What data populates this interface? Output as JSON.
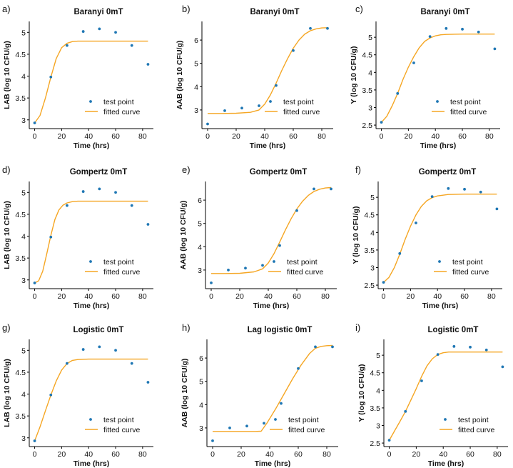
{
  "legend": {
    "point_label": "test point",
    "curve_label": "fitted curve"
  },
  "colors": {
    "point": "#1f77b4",
    "curve": "#f5a623",
    "axis": "#000000"
  },
  "chart_data": [
    {
      "panel": "a)",
      "type": "scatter+line",
      "title": "Baranyi 0mT",
      "xlabel": "Time (hrs)",
      "ylabel": "LAB (log 10 CFU/g)",
      "xlim": [
        -4,
        88
      ],
      "ylim": [
        2.8,
        5.25
      ],
      "xticks": [
        0,
        20,
        40,
        60,
        80
      ],
      "yticks": [
        3,
        3.5,
        4,
        4.5,
        5
      ],
      "xtick_labels": [
        "0",
        "20",
        "40",
        "60",
        "80"
      ],
      "ytick_labels": [
        "3",
        "3.5",
        "4",
        "4.5",
        "5"
      ],
      "points": {
        "x": [
          0,
          12,
          24,
          36,
          48,
          60,
          72,
          84
        ],
        "y": [
          2.93,
          3.98,
          4.7,
          5.02,
          5.08,
          5.0,
          4.7,
          4.27
        ]
      },
      "curve": {
        "x": [
          0,
          4,
          8,
          12,
          16,
          20,
          24,
          28,
          32,
          36,
          48,
          60,
          72,
          84
        ],
        "y": [
          2.93,
          3.1,
          3.5,
          3.98,
          4.4,
          4.65,
          4.75,
          4.79,
          4.8,
          4.8,
          4.8,
          4.8,
          4.8,
          4.8
        ]
      }
    },
    {
      "panel": "b)",
      "type": "scatter+line",
      "title": "Baranyi 0mT",
      "xlabel": "Time (hrs)",
      "ylabel": "AAB (log 10 CFU/g)",
      "xlim": [
        -4,
        88
      ],
      "ylim": [
        2.2,
        6.8
      ],
      "xticks": [
        0,
        20,
        40,
        60,
        80
      ],
      "yticks": [
        3,
        4,
        5,
        6
      ],
      "xtick_labels": [
        "0",
        "20",
        "40",
        "60",
        "80"
      ],
      "ytick_labels": [
        "3",
        "4",
        "5",
        "6"
      ],
      "points": {
        "x": [
          0,
          12,
          24,
          36,
          48,
          60,
          72,
          84
        ],
        "y": [
          2.4,
          2.97,
          3.08,
          3.18,
          4.05,
          5.55,
          6.5,
          6.5
        ]
      },
      "curve": {
        "x": [
          0,
          10,
          20,
          30,
          36,
          40,
          44,
          48,
          52,
          56,
          60,
          64,
          68,
          72,
          76,
          80,
          84
        ],
        "y": [
          2.85,
          2.85,
          2.86,
          2.9,
          3.0,
          3.25,
          3.65,
          4.15,
          4.7,
          5.2,
          5.65,
          6.0,
          6.25,
          6.4,
          6.48,
          6.52,
          6.53
        ]
      }
    },
    {
      "panel": "c)",
      "type": "scatter+line",
      "title": "Baranyi 0mT",
      "xlabel": "Time (hrs)",
      "ylabel": "Y (log 10 CFU/g)",
      "xlim": [
        -4,
        88
      ],
      "ylim": [
        2.4,
        5.45
      ],
      "xticks": [
        0,
        20,
        40,
        60,
        80
      ],
      "yticks": [
        2.5,
        3,
        3.5,
        4,
        4.5,
        5
      ],
      "xtick_labels": [
        "0",
        "20",
        "40",
        "60",
        "80"
      ],
      "ytick_labels": [
        "2.5",
        "3",
        "3.5",
        "4",
        "4.5",
        "5"
      ],
      "points": {
        "x": [
          0,
          12,
          24,
          36,
          48,
          60,
          72,
          84
        ],
        "y": [
          2.58,
          3.4,
          4.27,
          5.02,
          5.25,
          5.23,
          5.15,
          4.67
        ]
      },
      "curve": {
        "x": [
          0,
          4,
          8,
          12,
          16,
          20,
          24,
          28,
          32,
          36,
          40,
          44,
          48,
          60,
          72,
          84
        ],
        "y": [
          2.58,
          2.75,
          3.05,
          3.4,
          3.8,
          4.15,
          4.45,
          4.7,
          4.88,
          4.98,
          5.04,
          5.07,
          5.08,
          5.09,
          5.09,
          5.09
        ]
      }
    },
    {
      "panel": "d)",
      "type": "scatter+line",
      "title": "Gompertz 0mT",
      "xlabel": "Time (hrs)",
      "ylabel": "LAB (log 10 CFU/g)",
      "xlim": [
        -4,
        88
      ],
      "ylim": [
        2.8,
        5.25
      ],
      "xticks": [
        0,
        20,
        40,
        60,
        80
      ],
      "yticks": [
        3,
        3.5,
        4,
        4.5,
        5
      ],
      "xtick_labels": [
        "0",
        "20",
        "40",
        "60",
        "80"
      ],
      "ytick_labels": [
        "3",
        "3.5",
        "4",
        "4.5",
        "5"
      ],
      "points": {
        "x": [
          0,
          12,
          24,
          36,
          48,
          60,
          72,
          84
        ],
        "y": [
          2.93,
          3.98,
          4.7,
          5.02,
          5.08,
          5.0,
          4.7,
          4.27
        ]
      },
      "curve": {
        "x": [
          0,
          3,
          6,
          9,
          12,
          15,
          18,
          21,
          24,
          28,
          32,
          40,
          48,
          60,
          72,
          84
        ],
        "y": [
          2.93,
          2.98,
          3.2,
          3.6,
          4.02,
          4.38,
          4.6,
          4.71,
          4.76,
          4.79,
          4.8,
          4.8,
          4.8,
          4.8,
          4.8,
          4.8
        ]
      }
    },
    {
      "panel": "e)",
      "type": "scatter+line",
      "title": "Gompertz 0mT",
      "xlabel": "Time (hrs)",
      "ylabel": "AAB (log 10 CFU/g)",
      "xlim": [
        -4,
        88
      ],
      "ylim": [
        2.2,
        6.8
      ],
      "xticks": [
        0,
        20,
        40,
        60,
        80
      ],
      "yticks": [
        3,
        4,
        5,
        6
      ],
      "xtick_labels": [
        "0",
        "20",
        "40",
        "60",
        "80"
      ],
      "ytick_labels": [
        "3",
        "4",
        "5",
        "6"
      ],
      "points": {
        "x": [
          0,
          12,
          24,
          36,
          48,
          60,
          72,
          84
        ],
        "y": [
          2.45,
          3.0,
          3.08,
          3.2,
          4.05,
          5.55,
          6.48,
          6.48
        ]
      },
      "curve": {
        "x": [
          0,
          10,
          20,
          30,
          36,
          40,
          44,
          48,
          52,
          56,
          60,
          64,
          68,
          72,
          76,
          80,
          84
        ],
        "y": [
          2.85,
          2.85,
          2.86,
          2.92,
          3.05,
          3.3,
          3.7,
          4.2,
          4.72,
          5.2,
          5.62,
          5.95,
          6.2,
          6.37,
          6.47,
          6.52,
          6.54
        ]
      }
    },
    {
      "panel": "f)",
      "type": "scatter+line",
      "title": "Gompertz 0mT",
      "xlabel": "Time (hrs)",
      "ylabel": "Y (log 10 CFU/g)",
      "xlim": [
        -4,
        88
      ],
      "ylim": [
        2.4,
        5.45
      ],
      "xticks": [
        0,
        20,
        40,
        60,
        80
      ],
      "yticks": [
        2.5,
        3,
        3.5,
        4,
        4.5,
        5
      ],
      "xtick_labels": [
        "0",
        "20",
        "40",
        "60",
        "80"
      ],
      "ytick_labels": [
        "2.5",
        "3",
        "3.5",
        "4",
        "4.5",
        "5"
      ],
      "points": {
        "x": [
          0,
          12,
          24,
          36,
          48,
          60,
          72,
          84
        ],
        "y": [
          2.58,
          3.4,
          4.27,
          5.02,
          5.25,
          5.23,
          5.15,
          4.67
        ]
      },
      "curve": {
        "x": [
          0,
          4,
          8,
          12,
          16,
          20,
          24,
          28,
          32,
          36,
          40,
          48,
          60,
          72,
          84
        ],
        "y": [
          2.58,
          2.72,
          3.0,
          3.38,
          3.8,
          4.18,
          4.5,
          4.74,
          4.9,
          4.99,
          5.04,
          5.08,
          5.09,
          5.09,
          5.09
        ]
      }
    },
    {
      "panel": "g)",
      "type": "scatter+line",
      "title": "Logistic 0mT",
      "xlabel": "Time (hrs)",
      "ylabel": "LAB (log 10 CFU/g)",
      "xlim": [
        -4,
        88
      ],
      "ylim": [
        2.8,
        5.25
      ],
      "xticks": [
        0,
        20,
        40,
        60,
        80
      ],
      "yticks": [
        3,
        3.5,
        4,
        4.5,
        5
      ],
      "xtick_labels": [
        "0",
        "20",
        "40",
        "60",
        "80"
      ],
      "ytick_labels": [
        "3",
        "3.5",
        "4",
        "4.5",
        "5"
      ],
      "points": {
        "x": [
          0,
          12,
          24,
          36,
          48,
          60,
          72,
          84
        ],
        "y": [
          2.93,
          3.98,
          4.7,
          5.02,
          5.08,
          5.0,
          4.7,
          4.27
        ]
      },
      "curve": {
        "x": [
          0,
          4,
          8,
          12,
          16,
          20,
          24,
          28,
          32,
          40,
          48,
          60,
          72,
          84
        ],
        "y": [
          2.93,
          3.25,
          3.62,
          3.98,
          4.3,
          4.55,
          4.7,
          4.77,
          4.79,
          4.8,
          4.8,
          4.8,
          4.8,
          4.8
        ]
      }
    },
    {
      "panel": "h)",
      "type": "scatter+line",
      "title": "Lag logistic 0mT",
      "xlabel": "Time (hrs)",
      "ylabel": "AAB (log 10 CFU/g)",
      "xlim": [
        -4,
        88
      ],
      "ylim": [
        2.2,
        6.8
      ],
      "xticks": [
        0,
        20,
        40,
        60,
        80
      ],
      "yticks": [
        3,
        4,
        5,
        6
      ],
      "xtick_labels": [
        "0",
        "20",
        "40",
        "60",
        "80"
      ],
      "ytick_labels": [
        "3",
        "4",
        "5",
        "6"
      ],
      "points": {
        "x": [
          0,
          12,
          24,
          36,
          48,
          60,
          72,
          84
        ],
        "y": [
          2.45,
          3.0,
          3.08,
          3.2,
          4.05,
          5.55,
          6.48,
          6.48
        ]
      },
      "curve": {
        "x": [
          0,
          10,
          20,
          30,
          34,
          38,
          44,
          50,
          56,
          62,
          68,
          72,
          76,
          80,
          84
        ],
        "y": [
          2.85,
          2.85,
          2.85,
          2.85,
          2.86,
          3.2,
          3.8,
          4.45,
          5.1,
          5.7,
          6.2,
          6.42,
          6.5,
          6.53,
          6.54
        ]
      }
    },
    {
      "panel": "i)",
      "type": "scatter+line",
      "title": "Logistic 0mT",
      "xlabel": "Time (hrs)",
      "ylabel": "Y (log 10 CFU/g)",
      "xlim": [
        -4,
        88
      ],
      "ylim": [
        2.4,
        5.45
      ],
      "xticks": [
        0,
        20,
        40,
        60,
        80
      ],
      "yticks": [
        2.5,
        3,
        3.5,
        4,
        4.5,
        5
      ],
      "xtick_labels": [
        "0",
        "20",
        "40",
        "60",
        "80"
      ],
      "ytick_labels": [
        "2.5",
        "3",
        "3.5",
        "4",
        "4.5",
        "5"
      ],
      "points": {
        "x": [
          0,
          12,
          24,
          36,
          48,
          60,
          72,
          84
        ],
        "y": [
          2.58,
          3.4,
          4.27,
          5.02,
          5.25,
          5.23,
          5.15,
          4.67
        ]
      },
      "curve": {
        "x": [
          0,
          4,
          8,
          12,
          16,
          20,
          24,
          28,
          32,
          36,
          40,
          44,
          48,
          60,
          72,
          84
        ],
        "y": [
          2.58,
          2.85,
          3.12,
          3.4,
          3.72,
          4.05,
          4.4,
          4.7,
          4.9,
          5.02,
          5.07,
          5.09,
          5.09,
          5.09,
          5.09,
          5.09
        ]
      }
    }
  ]
}
